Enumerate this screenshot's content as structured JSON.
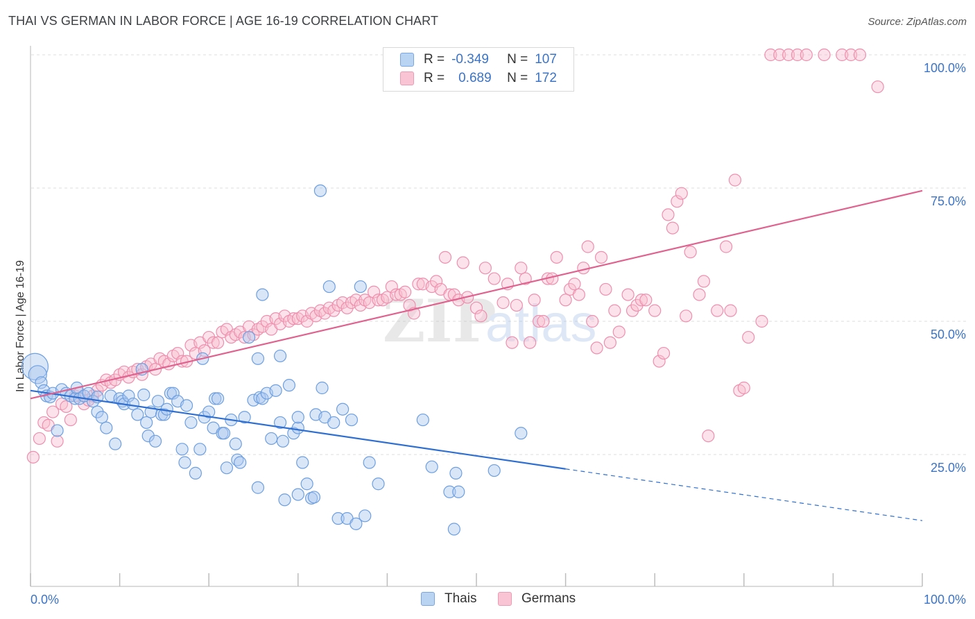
{
  "title": "THAI VS GERMAN IN LABOR FORCE | AGE 16-19 CORRELATION CHART",
  "source": "Source: ZipAtlas.com",
  "watermark": {
    "part1": "ZIP",
    "part2": "atlas"
  },
  "legend": {
    "rows": [
      {
        "r_label": "R =",
        "r_value": "-0.349",
        "n_label": "N =",
        "n_value": "107"
      },
      {
        "r_label": "R =",
        "r_value": "0.689",
        "n_label": "N =",
        "n_value": "172"
      }
    ]
  },
  "bottom_legend": {
    "series1": "Thais",
    "series2": "Germans"
  },
  "colors": {
    "thais_fill": "#aac8f0",
    "thais_stroke": "#6d9fe0",
    "thais_line": "#2f6fd1",
    "germans_fill": "#f8bfd0",
    "germans_stroke": "#ee8fae",
    "germans_line": "#e0628e",
    "axis_text": "#3b73c7",
    "grid": "#dddddd"
  },
  "chart_data": {
    "type": "scatter",
    "title": "THAI VS GERMAN IN LABOR FORCE | AGE 16-19 CORRELATION CHART",
    "xlabel": "",
    "ylabel": "In Labor Force | Age 16-19",
    "xlim": [
      0,
      100
    ],
    "ylim": [
      0,
      105
    ],
    "x_tick_labels": [
      "0.0%",
      "100.0%"
    ],
    "y_tick_labels": [
      "25.0%",
      "50.0%",
      "75.0%",
      "100.0%"
    ],
    "y_ticks": [
      25,
      50,
      75,
      100
    ],
    "grid": true,
    "legend_position": "top-center",
    "series": [
      {
        "name": "Thais",
        "r": -0.349,
        "n": 107,
        "trend": {
          "x0": 0,
          "y0": 37.0,
          "x1": 60,
          "y1": 22.3,
          "dash_x1": 100,
          "dash_y1": 12.6
        },
        "points": [
          [
            0.5,
            41.5
          ],
          [
            0.8,
            40
          ],
          [
            1.2,
            38.5
          ],
          [
            1.5,
            37
          ],
          [
            1.8,
            36
          ],
          [
            2.2,
            35.8
          ],
          [
            2.5,
            36.5
          ],
          [
            3,
            29.5
          ],
          [
            3.5,
            37.2
          ],
          [
            4,
            36.5
          ],
          [
            4.5,
            36
          ],
          [
            5,
            35.5
          ],
          [
            5.2,
            37.5
          ],
          [
            5.5,
            35.5
          ],
          [
            6,
            36
          ],
          [
            6.5,
            36.5
          ],
          [
            7,
            35
          ],
          [
            7.5,
            33
          ],
          [
            7.5,
            35.8
          ],
          [
            8,
            32
          ],
          [
            8.5,
            30
          ],
          [
            9,
            36
          ],
          [
            9.5,
            27
          ],
          [
            10,
            35.5
          ],
          [
            10.3,
            35
          ],
          [
            10.5,
            34.5
          ],
          [
            11,
            36
          ],
          [
            11.5,
            34.5
          ],
          [
            12,
            32.5
          ],
          [
            12.5,
            41
          ],
          [
            12.7,
            36.2
          ],
          [
            13,
            31
          ],
          [
            13.2,
            28.5
          ],
          [
            13.5,
            33
          ],
          [
            14,
            27.5
          ],
          [
            14.3,
            35
          ],
          [
            14.7,
            32.5
          ],
          [
            15,
            32.5
          ],
          [
            15.3,
            33.5
          ],
          [
            15.7,
            36.5
          ],
          [
            16,
            36.5
          ],
          [
            16.5,
            35
          ],
          [
            17,
            26
          ],
          [
            17.3,
            23.5
          ],
          [
            17.5,
            34.2
          ],
          [
            18,
            31
          ],
          [
            18.5,
            21.5
          ],
          [
            19,
            26
          ],
          [
            19.3,
            43
          ],
          [
            19.5,
            32
          ],
          [
            20,
            33
          ],
          [
            20.5,
            30
          ],
          [
            20.7,
            35.5
          ],
          [
            21,
            35.5
          ],
          [
            21.5,
            29
          ],
          [
            21.7,
            29
          ],
          [
            22,
            22.5
          ],
          [
            22.5,
            31.5
          ],
          [
            23,
            27
          ],
          [
            23.2,
            24
          ],
          [
            23.5,
            23.5
          ],
          [
            24,
            32
          ],
          [
            24.5,
            47
          ],
          [
            25,
            35.2
          ],
          [
            25.5,
            43
          ],
          [
            25.7,
            35.7
          ],
          [
            25.5,
            18.8
          ],
          [
            26,
            35.5
          ],
          [
            26,
            55
          ],
          [
            26.5,
            36.5
          ],
          [
            27,
            28
          ],
          [
            27.5,
            37
          ],
          [
            28,
            43.5
          ],
          [
            28,
            31
          ],
          [
            28.3,
            27.5
          ],
          [
            28.5,
            16.5
          ],
          [
            29,
            38
          ],
          [
            29.5,
            29
          ],
          [
            30,
            30
          ],
          [
            30,
            32
          ],
          [
            30,
            17.5
          ],
          [
            30.5,
            23.5
          ],
          [
            31,
            19.5
          ],
          [
            31.5,
            16.8
          ],
          [
            31.8,
            17
          ],
          [
            32,
            32.5
          ],
          [
            32.5,
            74.5
          ],
          [
            32.7,
            37.5
          ],
          [
            33,
            32
          ],
          [
            33.5,
            56.5
          ],
          [
            34,
            31
          ],
          [
            34.5,
            13
          ],
          [
            35,
            33.5
          ],
          [
            35.5,
            13
          ],
          [
            36,
            31.5
          ],
          [
            36.5,
            12
          ],
          [
            37,
            56.5
          ],
          [
            37.5,
            13.5
          ],
          [
            38,
            23.5
          ],
          [
            39,
            19.5
          ],
          [
            44,
            31.5
          ],
          [
            45,
            22.7
          ],
          [
            47,
            18
          ],
          [
            47.5,
            11
          ],
          [
            47.7,
            21.5
          ],
          [
            48,
            18
          ],
          [
            52,
            22
          ],
          [
            55,
            29
          ]
        ]
      },
      {
        "name": "Germans",
        "r": 0.689,
        "n": 172,
        "trend": {
          "x0": 0,
          "y0": 35.5,
          "x1": 100,
          "y1": 74.5
        },
        "points": [
          [
            0.3,
            24.5
          ],
          [
            1,
            28
          ],
          [
            1.5,
            31
          ],
          [
            2,
            30.5
          ],
          [
            2.5,
            33
          ],
          [
            3,
            27.5
          ],
          [
            3.5,
            34.5
          ],
          [
            4,
            34
          ],
          [
            4.5,
            31.5
          ],
          [
            5,
            36
          ],
          [
            5.5,
            36.5
          ],
          [
            6,
            34.5
          ],
          [
            6.5,
            35.2
          ],
          [
            7,
            36
          ],
          [
            7.5,
            37
          ],
          [
            8,
            38
          ],
          [
            8.5,
            39
          ],
          [
            9,
            38.5
          ],
          [
            9.5,
            39
          ],
          [
            10,
            40
          ],
          [
            10.5,
            40.5
          ],
          [
            11,
            39.5
          ],
          [
            11.5,
            40.5
          ],
          [
            12,
            41
          ],
          [
            12.5,
            40
          ],
          [
            13,
            41.5
          ],
          [
            13.5,
            42
          ],
          [
            14,
            41
          ],
          [
            14.5,
            43
          ],
          [
            15,
            42.5
          ],
          [
            15.5,
            42
          ],
          [
            16,
            43.5
          ],
          [
            16.5,
            44
          ],
          [
            17,
            42.5
          ],
          [
            17.5,
            42.5
          ],
          [
            18,
            45.5
          ],
          [
            18.5,
            44
          ],
          [
            19,
            46
          ],
          [
            19.5,
            44.5
          ],
          [
            20,
            47
          ],
          [
            20.5,
            46
          ],
          [
            21,
            46
          ],
          [
            21.5,
            48
          ],
          [
            22,
            48.5
          ],
          [
            22.5,
            47
          ],
          [
            23,
            47.5
          ],
          [
            23.5,
            48
          ],
          [
            24,
            47
          ],
          [
            24.5,
            49
          ],
          [
            25,
            47.5
          ],
          [
            25.5,
            48.5
          ],
          [
            26,
            49
          ],
          [
            26.5,
            50
          ],
          [
            27,
            48.5
          ],
          [
            27.5,
            50.5
          ],
          [
            28,
            49.5
          ],
          [
            28.5,
            51
          ],
          [
            29,
            50
          ],
          [
            29.5,
            50.5
          ],
          [
            30,
            50.5
          ],
          [
            30.5,
            51
          ],
          [
            31,
            50
          ],
          [
            31.5,
            51.5
          ],
          [
            32,
            51
          ],
          [
            32.5,
            52
          ],
          [
            33,
            51.5
          ],
          [
            33.5,
            52.5
          ],
          [
            34,
            52
          ],
          [
            34.5,
            53
          ],
          [
            35,
            53.5
          ],
          [
            35.5,
            52.5
          ],
          [
            36,
            53.5
          ],
          [
            36.5,
            54
          ],
          [
            37,
            53
          ],
          [
            37.5,
            54
          ],
          [
            38,
            53.5
          ],
          [
            38.5,
            55.5
          ],
          [
            39,
            54
          ],
          [
            39.5,
            54
          ],
          [
            40,
            54.5
          ],
          [
            40.5,
            56.5
          ],
          [
            41,
            55
          ],
          [
            41.5,
            55
          ],
          [
            42,
            55.5
          ],
          [
            42.5,
            53
          ],
          [
            43,
            51.5
          ],
          [
            43.5,
            57
          ],
          [
            44,
            57
          ],
          [
            45,
            56.5
          ],
          [
            45.5,
            57.5
          ],
          [
            46,
            56
          ],
          [
            46.5,
            62
          ],
          [
            47,
            55
          ],
          [
            47.5,
            55
          ],
          [
            48,
            54
          ],
          [
            48.5,
            61
          ],
          [
            49,
            54.5
          ],
          [
            50,
            52.5
          ],
          [
            50.5,
            51
          ],
          [
            51,
            60
          ],
          [
            52,
            58
          ],
          [
            53,
            53.5
          ],
          [
            53.5,
            57
          ],
          [
            54,
            46
          ],
          [
            54.5,
            53
          ],
          [
            55,
            60
          ],
          [
            55.5,
            58
          ],
          [
            56,
            46
          ],
          [
            56.5,
            54
          ],
          [
            57,
            50
          ],
          [
            57.5,
            50
          ],
          [
            58,
            58
          ],
          [
            58.5,
            58
          ],
          [
            59,
            62
          ],
          [
            60,
            54
          ],
          [
            60.5,
            56
          ],
          [
            61,
            57
          ],
          [
            61.5,
            55
          ],
          [
            62,
            60
          ],
          [
            62.5,
            64
          ],
          [
            63,
            50
          ],
          [
            63.5,
            45
          ],
          [
            64,
            62
          ],
          [
            64.5,
            56
          ],
          [
            65,
            46
          ],
          [
            65.5,
            52
          ],
          [
            66,
            48
          ],
          [
            67,
            55
          ],
          [
            67.5,
            52
          ],
          [
            68,
            53
          ],
          [
            68.5,
            54
          ],
          [
            69,
            54
          ],
          [
            70,
            52
          ],
          [
            70.5,
            42.5
          ],
          [
            71,
            44
          ],
          [
            71.5,
            70
          ],
          [
            72,
            67.5
          ],
          [
            72.5,
            72.5
          ],
          [
            73,
            74
          ],
          [
            73.5,
            51
          ],
          [
            74,
            63
          ],
          [
            75,
            55
          ],
          [
            75.5,
            57.5
          ],
          [
            76,
            28.5
          ],
          [
            77,
            52
          ],
          [
            78,
            64
          ],
          [
            78.5,
            52
          ],
          [
            79,
            76.5
          ],
          [
            79.5,
            37
          ],
          [
            80,
            37.5
          ],
          [
            80.5,
            47
          ],
          [
            82,
            50
          ],
          [
            83,
            100
          ],
          [
            84,
            100
          ],
          [
            85,
            100
          ],
          [
            86,
            100
          ],
          [
            87,
            100
          ],
          [
            89,
            100
          ],
          [
            91,
            100
          ],
          [
            92,
            100
          ],
          [
            93,
            100
          ],
          [
            95,
            94
          ]
        ]
      }
    ]
  }
}
